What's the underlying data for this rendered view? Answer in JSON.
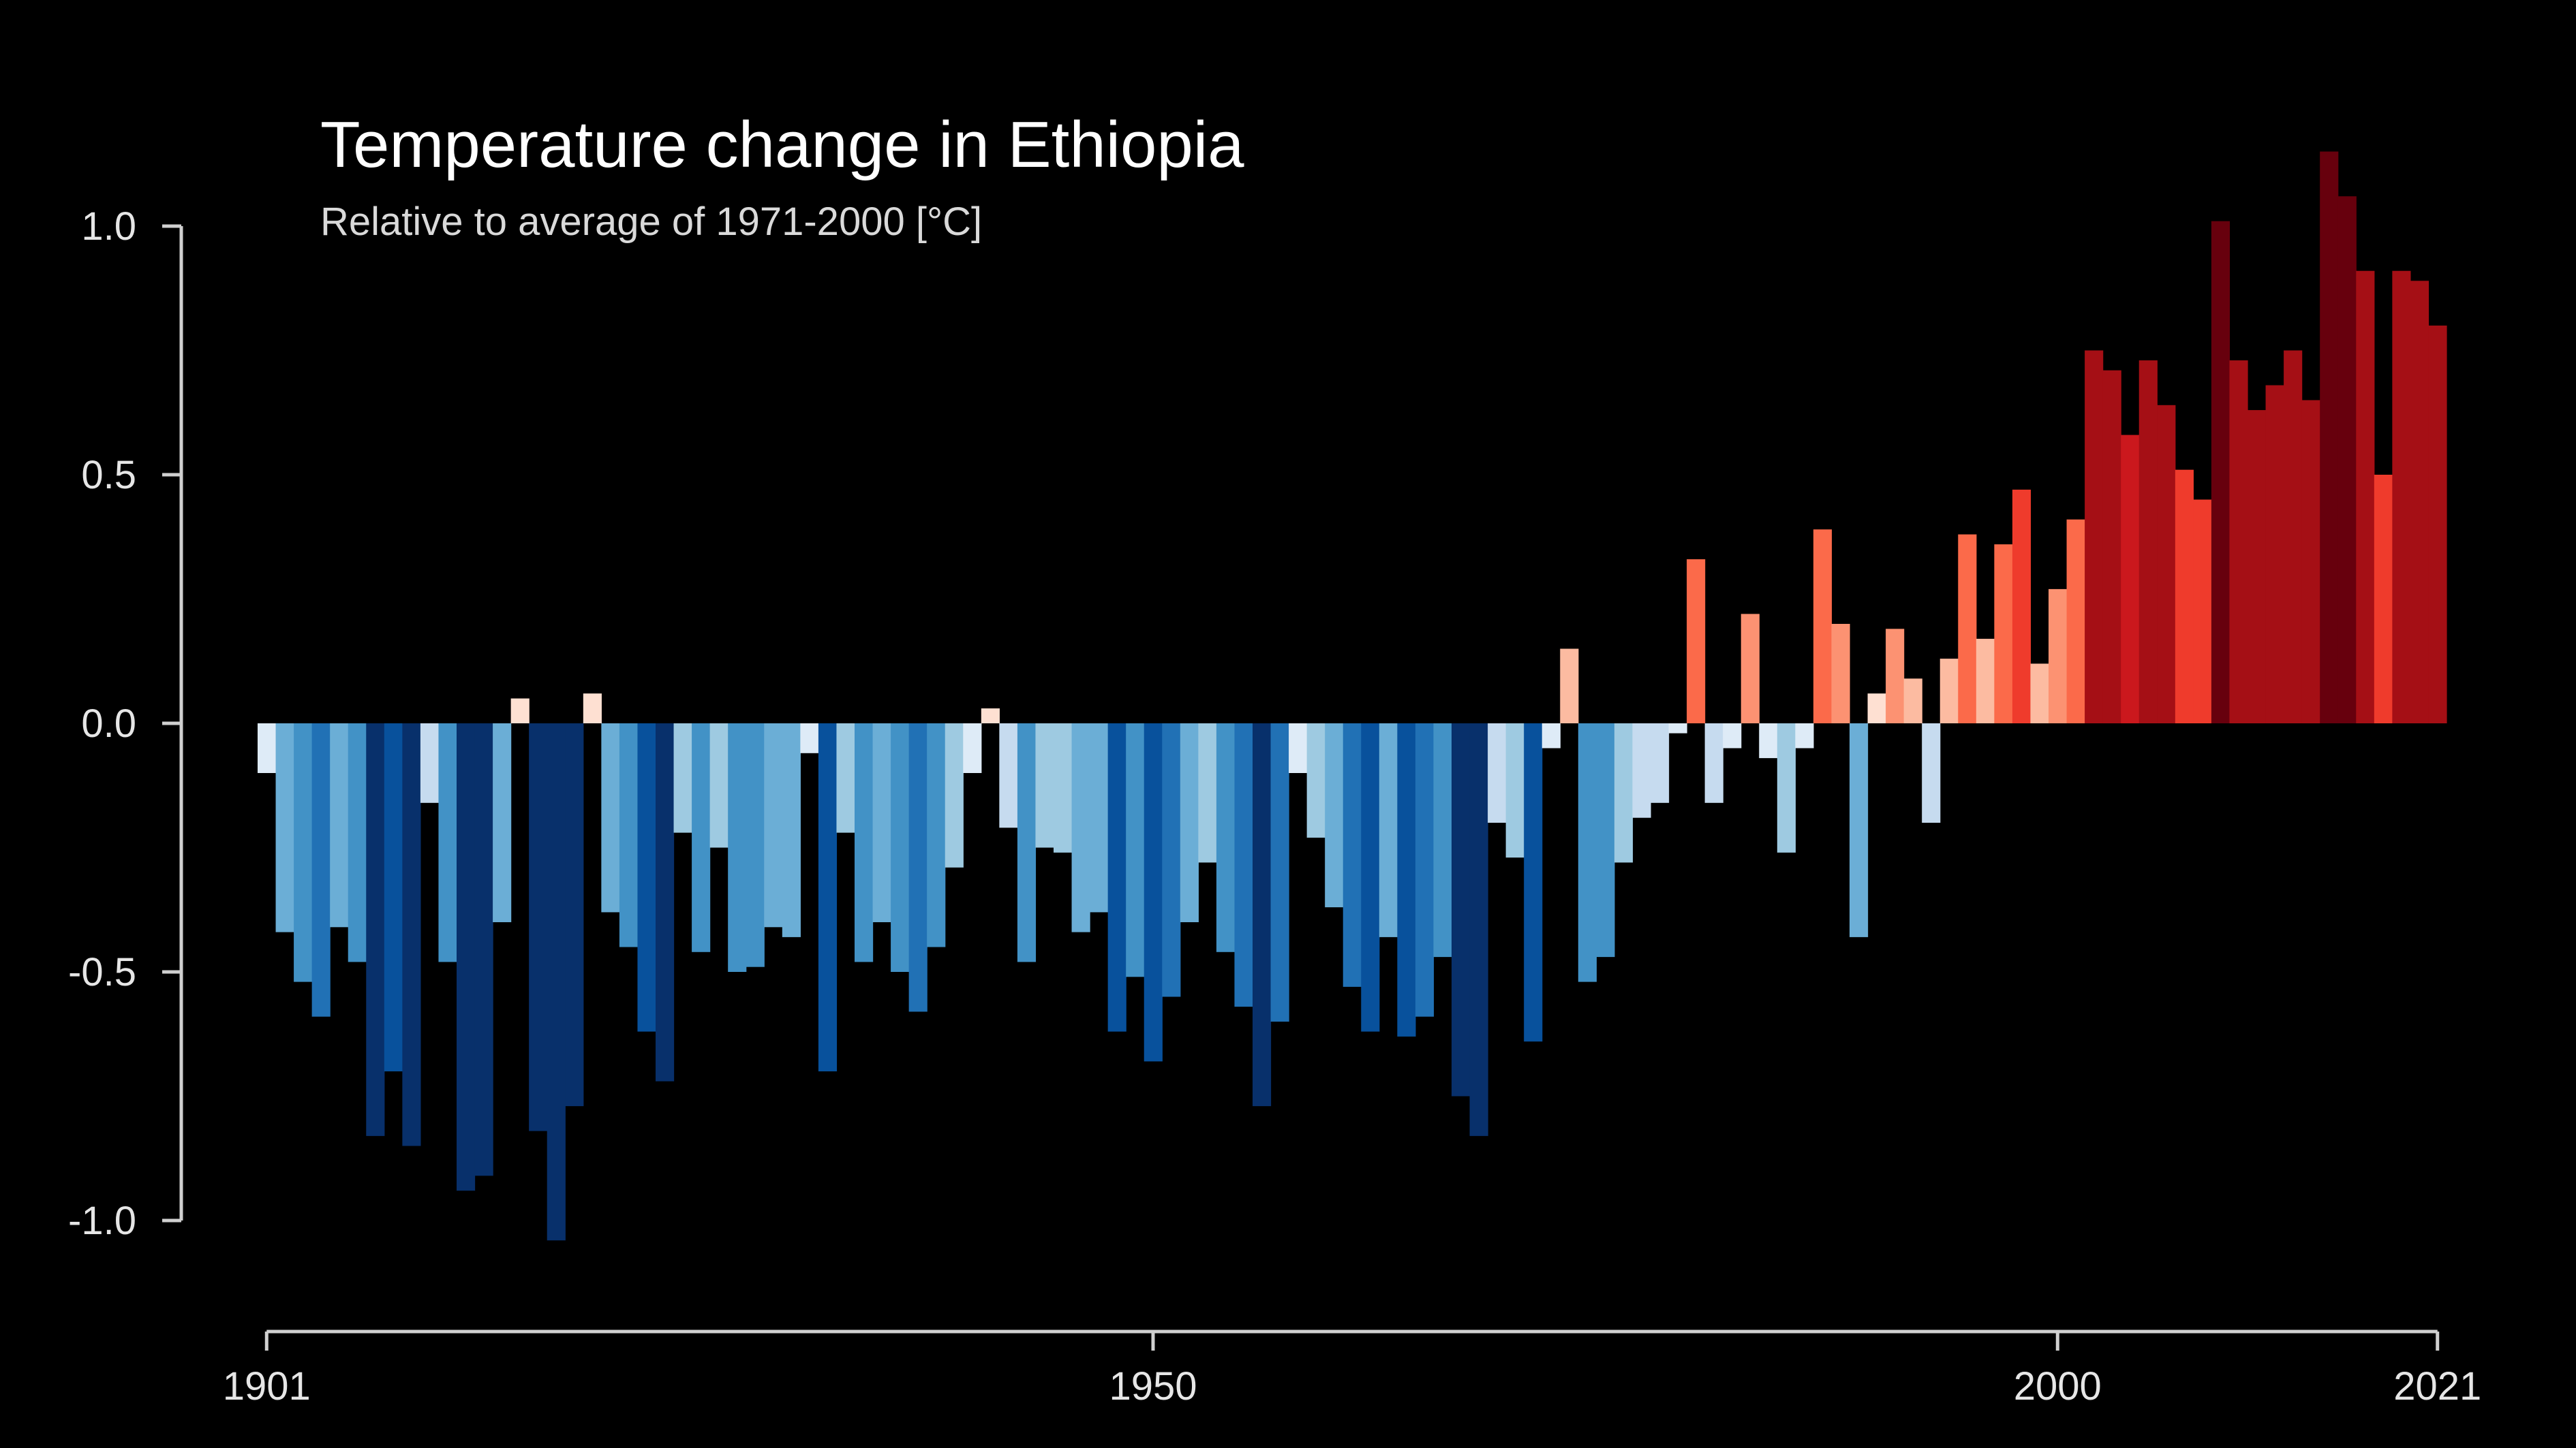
{
  "chart_data": {
    "type": "bar",
    "title": "Temperature change in Ethiopia",
    "subtitle": "Relative to average of 1971-2000  [°C]",
    "xlabel": "",
    "ylabel": "",
    "x": [
      1901,
      1902,
      1903,
      1904,
      1905,
      1906,
      1907,
      1908,
      1909,
      1910,
      1911,
      1912,
      1913,
      1914,
      1915,
      1916,
      1917,
      1918,
      1919,
      1920,
      1921,
      1922,
      1923,
      1924,
      1925,
      1926,
      1927,
      1928,
      1929,
      1930,
      1931,
      1932,
      1933,
      1934,
      1935,
      1936,
      1937,
      1938,
      1939,
      1940,
      1941,
      1942,
      1943,
      1944,
      1945,
      1946,
      1947,
      1948,
      1949,
      1950,
      1951,
      1952,
      1953,
      1954,
      1955,
      1956,
      1957,
      1958,
      1959,
      1960,
      1961,
      1962,
      1963,
      1964,
      1965,
      1966,
      1967,
      1968,
      1969,
      1970,
      1971,
      1972,
      1973,
      1974,
      1975,
      1976,
      1977,
      1978,
      1979,
      1980,
      1981,
      1982,
      1983,
      1984,
      1985,
      1986,
      1987,
      1988,
      1989,
      1990,
      1991,
      1992,
      1993,
      1994,
      1995,
      1996,
      1997,
      1998,
      1999,
      2000,
      2001,
      2002,
      2003,
      2004,
      2005,
      2006,
      2007,
      2008,
      2009,
      2010,
      2011,
      2012,
      2013,
      2014,
      2015,
      2016,
      2017,
      2018,
      2019,
      2020,
      2021
    ],
    "values": [
      -0.1,
      -0.42,
      -0.52,
      -0.59,
      -0.41,
      -0.48,
      -0.83,
      -0.7,
      -0.85,
      -0.16,
      -0.48,
      -0.94,
      -0.91,
      -0.4,
      0.05,
      -0.82,
      -1.04,
      -0.77,
      0.06,
      -0.38,
      -0.45,
      -0.62,
      -0.72,
      -0.22,
      -0.46,
      -0.25,
      -0.5,
      -0.49,
      -0.41,
      -0.43,
      -0.06,
      -0.7,
      -0.22,
      -0.48,
      -0.4,
      -0.5,
      -0.58,
      -0.45,
      -0.29,
      -0.1,
      0.03,
      -0.21,
      -0.48,
      -0.25,
      -0.26,
      -0.42,
      -0.38,
      -0.62,
      -0.51,
      -0.68,
      -0.55,
      -0.4,
      -0.28,
      -0.46,
      -0.57,
      -0.77,
      -0.6,
      -0.1,
      -0.23,
      -0.37,
      -0.53,
      -0.62,
      -0.43,
      -0.63,
      -0.59,
      -0.47,
      -0.75,
      -0.83,
      -0.2,
      -0.27,
      -0.64,
      -0.05,
      0.15,
      -0.52,
      -0.47,
      -0.28,
      -0.19,
      -0.16,
      -0.02,
      0.33,
      -0.16,
      -0.05,
      0.22,
      -0.07,
      -0.26,
      -0.05,
      0.39,
      0.2,
      -0.43,
      0.06,
      0.19,
      0.09,
      -0.2,
      0.13,
      0.38,
      0.17,
      0.36,
      0.47,
      0.12,
      0.27,
      0.41,
      0.75,
      0.71,
      0.58,
      0.73,
      0.64,
      0.51,
      0.45,
      1.01,
      0.73,
      0.63,
      0.68,
      0.75,
      0.65,
      1.15,
      1.06,
      0.91,
      0.5,
      0.91,
      0.89,
      0.8
    ],
    "xlim": [
      1901,
      2021
    ],
    "ylim": [
      -1.0,
      1.0
    ],
    "y_ticks": [
      "-1.0",
      "-0.5",
      "0.0",
      "0.5",
      "1.0"
    ],
    "x_ticks": [
      "1901",
      "1950",
      "2000",
      "2021"
    ],
    "grid": false,
    "legend": "none",
    "colors": {
      "background": "#000000",
      "axis": "#d0d0d0",
      "text": "#e6e6e6"
    }
  }
}
